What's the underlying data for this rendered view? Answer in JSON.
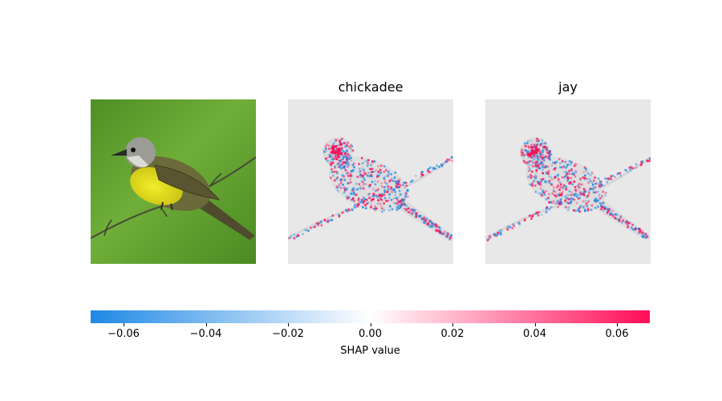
{
  "chart_data": {
    "type": "heatmap",
    "panels": [
      {
        "name": "original image",
        "title": ""
      },
      {
        "name": "shap map",
        "title": "chickadee"
      },
      {
        "name": "shap map",
        "title": "jay"
      }
    ],
    "colorbar": {
      "label": "SHAP value",
      "range": [
        -0.068,
        0.068
      ],
      "ticks": [
        -0.06,
        -0.04,
        -0.02,
        0.0,
        0.02,
        0.04,
        0.06
      ],
      "tick_labels": [
        "−0.06",
        "−0.04",
        "−0.02",
        "0.00",
        "0.02",
        "0.04",
        "0.06"
      ],
      "colors": {
        "negative": "#1e88e5",
        "zero": "#ffffff",
        "positive": "#ff0d57"
      }
    }
  },
  "colors": {
    "background": "#ffffff",
    "photo_green": "#5e9a2e",
    "bird_yellow": "#e8e61c",
    "bird_olive": "#6b6a3a",
    "map_gray": "#e8e8e8"
  }
}
